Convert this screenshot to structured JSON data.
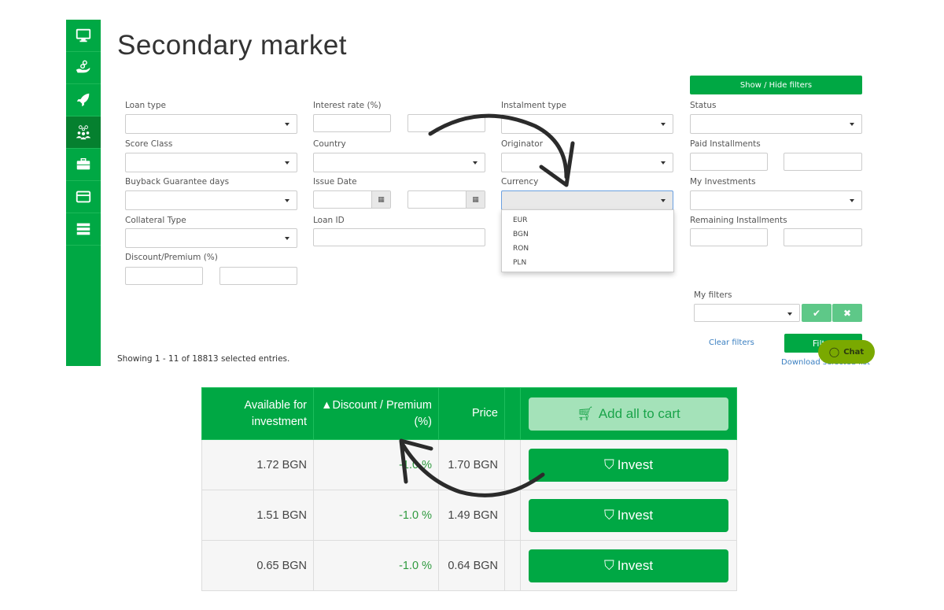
{
  "sidebar": {
    "items": [
      {
        "icon": "monitor-icon"
      },
      {
        "icon": "hand-coins-icon"
      },
      {
        "icon": "rocket-icon"
      },
      {
        "icon": "investors-icon",
        "active": true
      },
      {
        "icon": "briefcase-icon"
      },
      {
        "icon": "credit-card-icon"
      },
      {
        "icon": "server-list-icon"
      }
    ]
  },
  "page_title": "Secondary market",
  "filters": {
    "toggle_label": "Show / Hide filters",
    "loan_type": "Loan type",
    "score_class": "Score Class",
    "buyback": "Buyback Guarantee days",
    "collateral": "Collateral Type",
    "discount": "Discount/Premium (%)",
    "interest_rate": "Interest rate (%)",
    "country": "Country",
    "issue_date": "Issue Date",
    "loan_id": "Loan ID",
    "instalment_type": "Instalment type",
    "originator": "Originator",
    "currency": "Currency",
    "status": "Status",
    "paid_installments": "Paid Installments",
    "my_investments": "My Investments",
    "remaining_installments": "Remaining Installments",
    "currency_options": [
      "EUR",
      "BGN",
      "RON",
      "PLN"
    ],
    "my_filters": "My filters",
    "clear_filters": "Clear filters",
    "filter_button": "Filter",
    "download": "Download selected list"
  },
  "chat_label": "Chat",
  "showing": "Showing 1 - 11 of 18813 selected entries.",
  "table": {
    "headers": {
      "available": "Available for investment",
      "discount": "Discount / Premium (%)",
      "price": "Price",
      "add_all": "Add all to cart"
    },
    "rows": [
      {
        "available": "1.72 BGN",
        "discount": "-1.0 %",
        "price": "1.70 BGN",
        "action": "Invest"
      },
      {
        "available": "1.51 BGN",
        "discount": "-1.0 %",
        "price": "1.49 BGN",
        "action": "Invest"
      },
      {
        "available": "0.65 BGN",
        "discount": "-1.0 %",
        "price": "0.64 BGN",
        "action": "Invest"
      }
    ]
  },
  "colors": {
    "brand": "#00a844",
    "chat": "#7aa900"
  }
}
